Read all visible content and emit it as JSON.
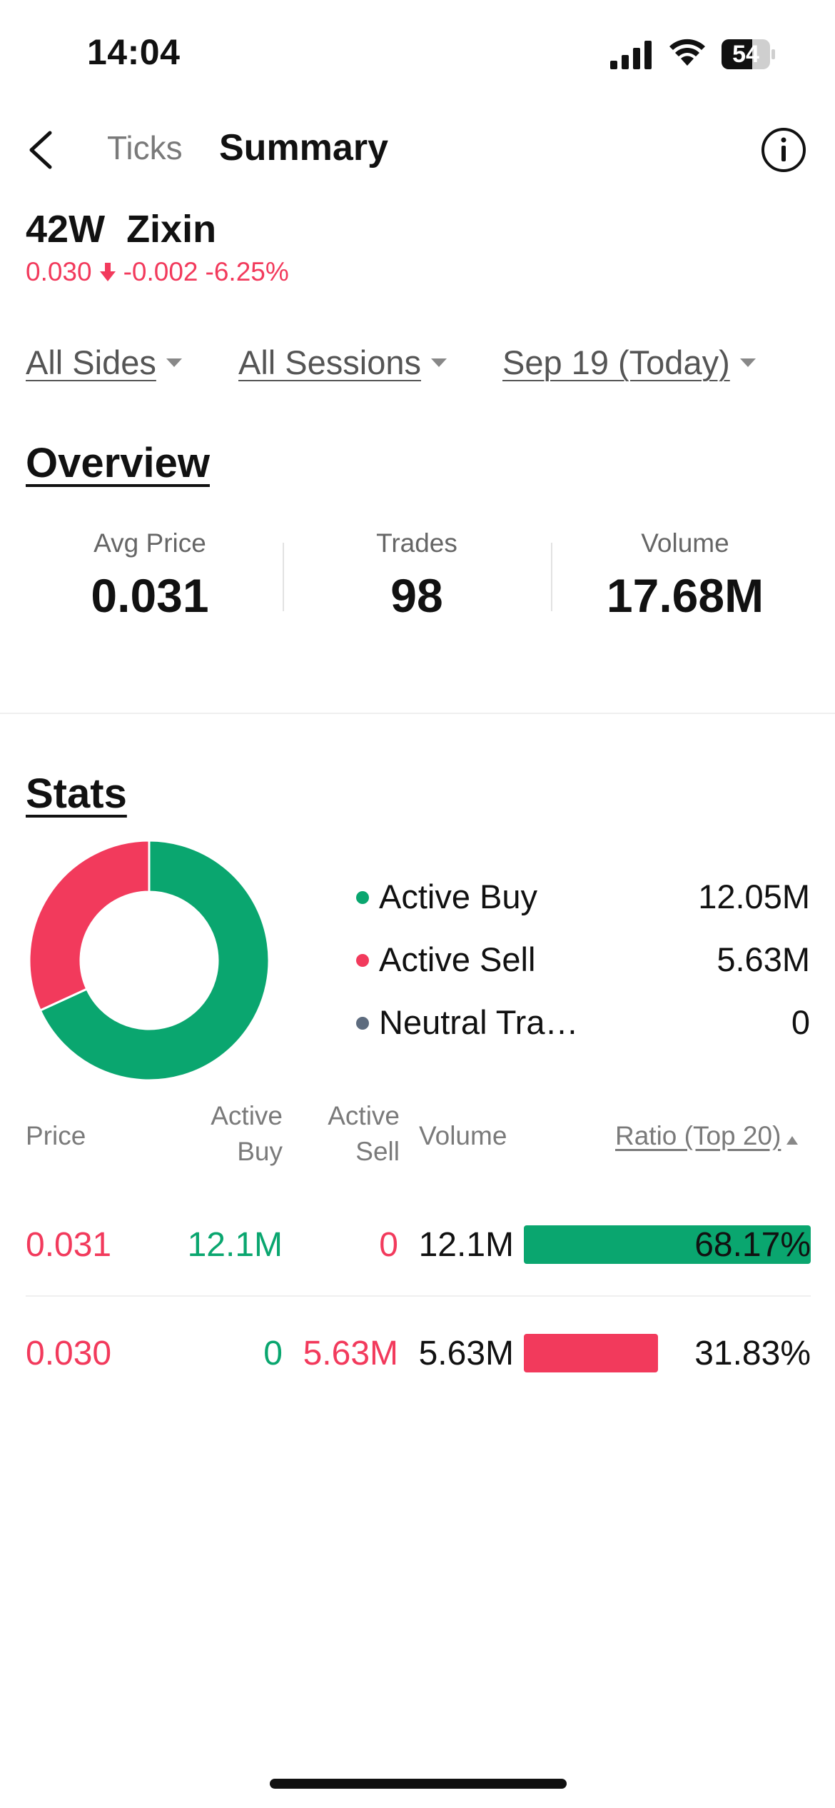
{
  "status_bar": {
    "time": "14:04",
    "battery": "54"
  },
  "nav": {
    "tab_ticks": "Ticks",
    "tab_summary": "Summary"
  },
  "stock": {
    "code": "42W",
    "name": "Zixin",
    "price": "0.030",
    "change": "-0.002",
    "change_pct": "-6.25%"
  },
  "filters": {
    "sides": "All Sides",
    "sessions": "All Sessions",
    "date": "Sep 19 (Today)"
  },
  "overview": {
    "title": "Overview",
    "avg_price_label": "Avg Price",
    "avg_price": "0.031",
    "trades_label": "Trades",
    "trades": "98",
    "volume_label": "Volume",
    "volume": "17.68M"
  },
  "stats": {
    "title": "Stats",
    "legend": [
      {
        "label": "Active Buy",
        "value": "12.05M"
      },
      {
        "label": "Active Sell",
        "value": "5.63M"
      },
      {
        "label": "Neutral Tra…",
        "value": "0"
      }
    ]
  },
  "colors": {
    "buy": "#0aa66f",
    "sell": "#f23a5c",
    "neutral": "#5d6b7e"
  },
  "table": {
    "headers": {
      "price": "Price",
      "active_buy_1": "Active",
      "active_buy_2": "Buy",
      "active_sell_1": "Active",
      "active_sell_2": "Sell",
      "volume": "Volume",
      "ratio": "Ratio (Top 20)"
    },
    "rows": [
      {
        "price": "0.031",
        "active_buy": "12.1M",
        "active_sell": "0",
        "volume": "12.1M",
        "ratio": "68.17%",
        "ratio_value": 0.6817,
        "side": "buy"
      },
      {
        "price": "0.030",
        "active_buy": "0",
        "active_sell": "5.63M",
        "volume": "5.63M",
        "ratio": "31.83%",
        "ratio_value": 0.3183,
        "side": "sell"
      }
    ]
  },
  "chart_data": {
    "type": "pie",
    "categories": [
      "Active Buy",
      "Active Sell",
      "Neutral Tra…"
    ],
    "values": [
      12.05,
      5.63,
      0
    ]
  }
}
